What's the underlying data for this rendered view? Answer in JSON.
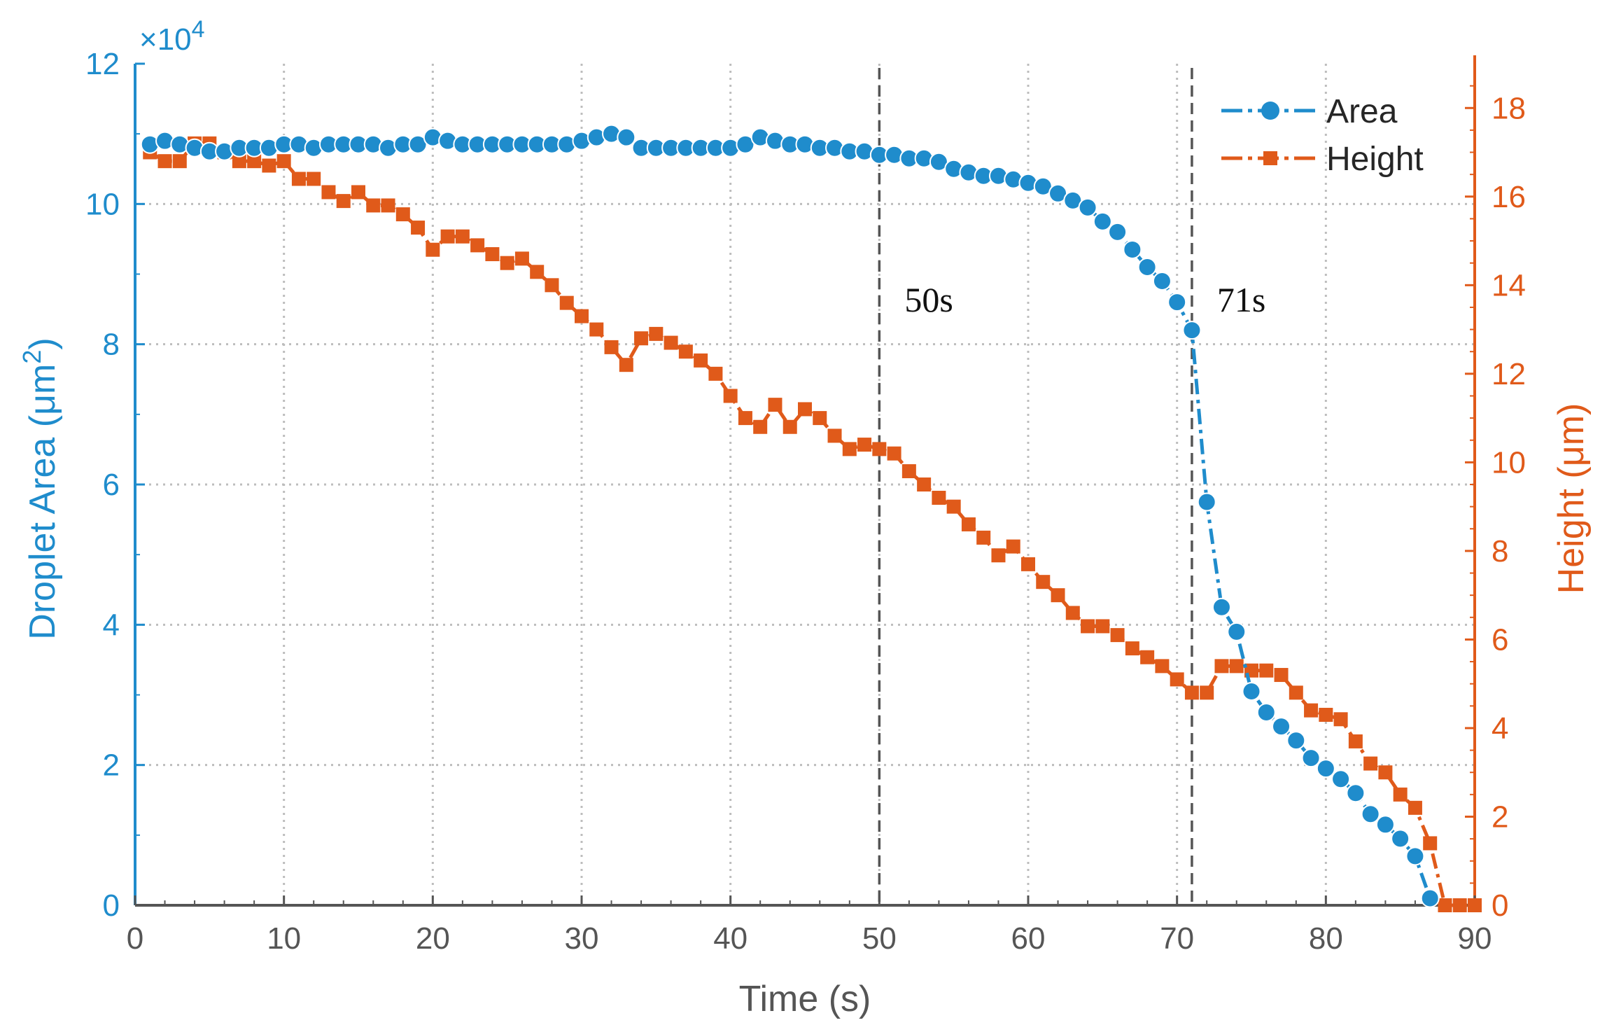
{
  "chart_data": {
    "type": "line",
    "title": "",
    "xlabel": "Time (s)",
    "ylabel_left": "Droplet Area (μm²)",
    "ylabel_left_parts": {
      "main": "Droplet Area (μm",
      "sup": "2",
      "close": ")"
    },
    "ylabel_right": "Height (μm)",
    "xlim": [
      0,
      90
    ],
    "ylim_left": [
      0,
      12
    ],
    "ylim_right": [
      0,
      19
    ],
    "left_scale_text": {
      "prefix": "×10",
      "exponent": "4"
    },
    "xticks": [
      "0",
      "10",
      "20",
      "30",
      "40",
      "50",
      "60",
      "70",
      "80",
      "90"
    ],
    "yticks_left": [
      "0",
      "2",
      "4",
      "6",
      "8",
      "10",
      "12"
    ],
    "yticks_right": [
      "0",
      "2",
      "4",
      "6",
      "8",
      "10",
      "12",
      "14",
      "16",
      "18"
    ],
    "grid": true,
    "legend_position": "top-right",
    "colors": {
      "area": "#1f8ccc",
      "height": "#e05a1a",
      "vline": "#555555",
      "axis_x": "#555555"
    },
    "series": [
      {
        "name": "Area",
        "axis": "left",
        "marker": "circle",
        "x": [
          1,
          2,
          3,
          4,
          5,
          6,
          7,
          8,
          9,
          10,
          11,
          12,
          13,
          14,
          15,
          16,
          17,
          18,
          19,
          20,
          21,
          22,
          23,
          24,
          25,
          26,
          27,
          28,
          29,
          30,
          31,
          32,
          33,
          34,
          35,
          36,
          37,
          38,
          39,
          40,
          41,
          42,
          43,
          44,
          45,
          46,
          47,
          48,
          49,
          50,
          51,
          52,
          53,
          54,
          55,
          56,
          57,
          58,
          59,
          60,
          61,
          62,
          63,
          64,
          65,
          66,
          67,
          68,
          69,
          70,
          71,
          72,
          73,
          74,
          75,
          76,
          77,
          78,
          79,
          80,
          81,
          82,
          83,
          84,
          85,
          86,
          87
        ],
        "values": [
          10.85,
          10.9,
          10.85,
          10.8,
          10.75,
          10.75,
          10.8,
          10.8,
          10.8,
          10.85,
          10.85,
          10.8,
          10.85,
          10.85,
          10.85,
          10.85,
          10.8,
          10.85,
          10.85,
          10.95,
          10.9,
          10.85,
          10.85,
          10.85,
          10.85,
          10.85,
          10.85,
          10.85,
          10.85,
          10.9,
          10.95,
          11.0,
          10.95,
          10.8,
          10.8,
          10.8,
          10.8,
          10.8,
          10.8,
          10.8,
          10.85,
          10.95,
          10.9,
          10.85,
          10.85,
          10.8,
          10.8,
          10.75,
          10.75,
          10.7,
          10.7,
          10.65,
          10.65,
          10.6,
          10.5,
          10.45,
          10.4,
          10.4,
          10.35,
          10.3,
          10.25,
          10.15,
          10.05,
          9.95,
          9.75,
          9.6,
          9.35,
          9.1,
          8.9,
          8.6,
          8.2,
          5.75,
          4.25,
          3.9,
          3.05,
          2.75,
          2.55,
          2.35,
          2.1,
          1.95,
          1.8,
          1.6,
          1.3,
          1.15,
          0.95,
          0.7,
          0.1
        ]
      },
      {
        "name": "Height",
        "axis": "right",
        "marker": "square",
        "x": [
          1,
          2,
          3,
          4,
          5,
          6,
          7,
          8,
          9,
          10,
          11,
          12,
          13,
          14,
          15,
          16,
          17,
          18,
          19,
          20,
          21,
          22,
          23,
          24,
          25,
          26,
          27,
          28,
          29,
          30,
          31,
          32,
          33,
          34,
          35,
          36,
          37,
          38,
          39,
          40,
          41,
          42,
          43,
          44,
          45,
          46,
          47,
          48,
          49,
          50,
          51,
          52,
          53,
          54,
          55,
          56,
          57,
          58,
          59,
          60,
          61,
          62,
          63,
          64,
          65,
          66,
          67,
          68,
          69,
          70,
          71,
          72,
          73,
          74,
          75,
          76,
          77,
          78,
          79,
          80,
          81,
          82,
          83,
          84,
          85,
          86,
          87,
          88,
          89,
          90
        ],
        "values": [
          17.0,
          16.8,
          16.8,
          17.2,
          17.2,
          17.0,
          16.8,
          16.8,
          16.7,
          16.8,
          16.4,
          16.4,
          16.1,
          15.9,
          16.1,
          15.8,
          15.8,
          15.6,
          15.3,
          14.8,
          15.1,
          15.1,
          14.9,
          14.7,
          14.5,
          14.6,
          14.3,
          14.0,
          13.6,
          13.3,
          13.0,
          12.6,
          12.2,
          12.8,
          12.9,
          12.7,
          12.5,
          12.3,
          12.0,
          11.5,
          11.0,
          10.8,
          11.3,
          10.8,
          11.2,
          11.0,
          10.6,
          10.3,
          10.4,
          10.3,
          10.2,
          9.8,
          9.5,
          9.2,
          9.0,
          8.6,
          8.3,
          7.9,
          8.1,
          7.7,
          7.3,
          7.0,
          6.6,
          6.3,
          6.3,
          6.1,
          5.8,
          5.6,
          5.4,
          5.1,
          4.8,
          4.8,
          5.4,
          5.4,
          5.3,
          5.3,
          5.2,
          4.8,
          4.4,
          4.3,
          4.2,
          3.7,
          3.2,
          3.0,
          2.5,
          2.2,
          1.4,
          0.0,
          0.0,
          0.0
        ]
      }
    ],
    "annotations": [
      {
        "x": 50,
        "text": "50s"
      },
      {
        "x": 71,
        "text": "71s"
      }
    ]
  }
}
